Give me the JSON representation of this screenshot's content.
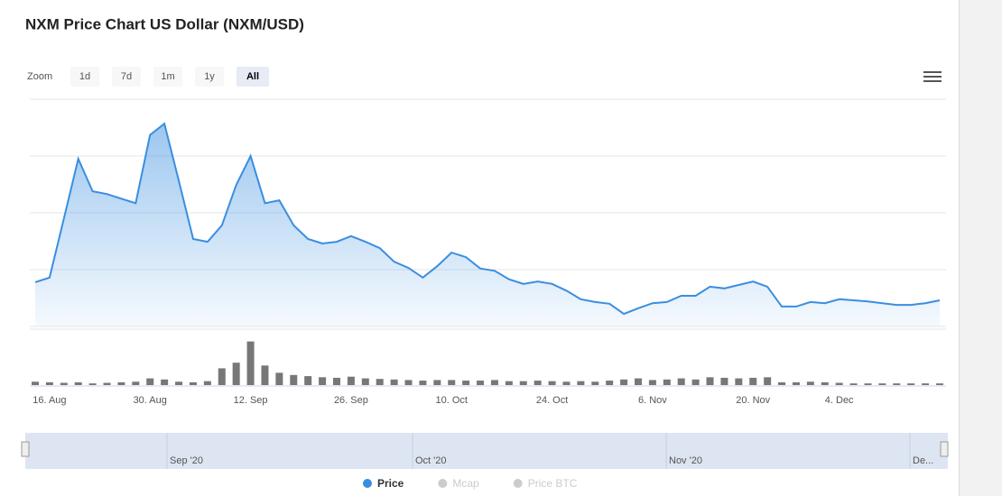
{
  "chart_data": {
    "type": "area",
    "title": "NXM Price Chart US Dollar (NXM/USD)",
    "zoom_label": "Zoom",
    "zoom_buttons": [
      "1d",
      "7d",
      "1m",
      "1y",
      "All"
    ],
    "selected_zoom": 4,
    "categories": [
      null,
      "16. Aug",
      null,
      null,
      null,
      null,
      null,
      null,
      "30. Aug",
      null,
      null,
      null,
      null,
      null,
      null,
      "12. Sep",
      null,
      null,
      null,
      null,
      null,
      null,
      "26. Sep",
      null,
      null,
      null,
      null,
      null,
      null,
      "10. Oct",
      null,
      null,
      null,
      null,
      null,
      null,
      "24. Oct",
      null,
      null,
      null,
      null,
      null,
      null,
      "6. Nov",
      null,
      null,
      null,
      null,
      null,
      null,
      "20. Nov",
      null,
      null,
      null,
      null,
      null,
      "4. Dec",
      null,
      null,
      null,
      null,
      null,
      null,
      null
    ],
    "series": [
      {
        "name": "Price",
        "color": "#3a8ee0",
        "values": [
          0.78,
          0.86,
          1.9,
          2.95,
          2.38,
          2.33,
          2.25,
          2.17,
          3.37,
          3.57,
          2.57,
          1.54,
          1.49,
          1.78,
          2.49,
          3.0,
          2.17,
          2.22,
          1.78,
          1.54,
          1.46,
          1.49,
          1.59,
          1.49,
          1.38,
          1.14,
          1.03,
          0.86,
          1.06,
          1.3,
          1.22,
          1.02,
          0.98,
          0.83,
          0.75,
          0.79,
          0.75,
          0.63,
          0.48,
          0.43,
          0.4,
          0.22,
          0.32,
          0.41,
          0.43,
          0.54,
          0.54,
          0.7,
          0.67,
          0.73,
          0.79,
          0.7,
          0.35,
          0.35,
          0.43,
          0.41,
          0.48,
          0.46,
          0.44,
          0.41,
          0.38,
          0.38,
          0.41,
          0.46
        ]
      }
    ],
    "hidden_series": [
      {
        "name": "Mcap",
        "color": "#cccccc"
      },
      {
        "name": "Price BTC",
        "color": "#cccccc"
      }
    ],
    "ylim": [
      0,
      4
    ],
    "y_grid": [
      0,
      1,
      2,
      3,
      4
    ],
    "volume": {
      "color": "#777777",
      "ylim": [
        0,
        100
      ],
      "values": [
        6,
        5,
        4,
        5,
        3,
        4,
        5,
        6,
        12,
        10,
        6,
        5,
        7,
        30,
        40,
        78,
        35,
        22,
        18,
        16,
        14,
        13,
        15,
        12,
        11,
        10,
        9,
        8,
        9,
        9,
        8,
        8,
        9,
        7,
        7,
        8,
        7,
        6,
        7,
        6,
        8,
        10,
        12,
        9,
        10,
        12,
        10,
        14,
        13,
        12,
        13,
        14,
        5,
        5,
        6,
        5,
        4,
        3,
        3,
        3,
        3,
        3,
        3,
        3
      ]
    },
    "navigator_labels": [
      "Sep '20",
      "Oct '20",
      "Nov '20",
      "De..."
    ]
  }
}
